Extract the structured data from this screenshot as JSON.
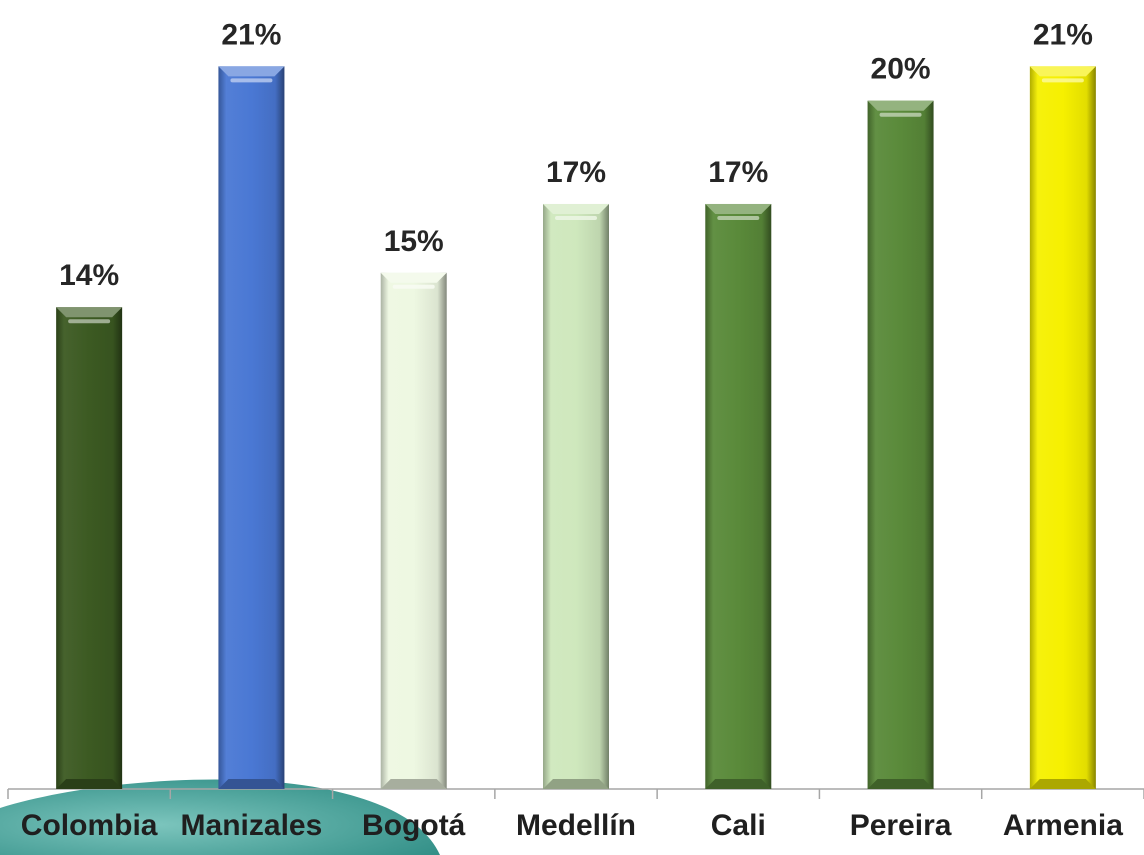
{
  "chart_data": {
    "type": "bar",
    "title": "",
    "xlabel": "",
    "ylabel": "",
    "categories": [
      "Colombia",
      "Manizales",
      "Bogotá",
      "Medellín",
      "Cali",
      "Pereira",
      "Armenia"
    ],
    "values": [
      14,
      21,
      15,
      17,
      17,
      20,
      21
    ],
    "value_labels": [
      "14%",
      "21%",
      "15%",
      "17%",
      "17%",
      "20%",
      "21%"
    ],
    "bar_colors": [
      "#3c5a22",
      "#4a78d4",
      "#eef8e2",
      "#cfe8bd",
      "#5a8a3a",
      "#5a8a3a",
      "#f6f000"
    ],
    "ylim": [
      0,
      21.3
    ],
    "grid": false,
    "legend": "none"
  },
  "decor": {
    "swoosh_colors": [
      "#2e8c84",
      "#7cc5bd"
    ]
  }
}
